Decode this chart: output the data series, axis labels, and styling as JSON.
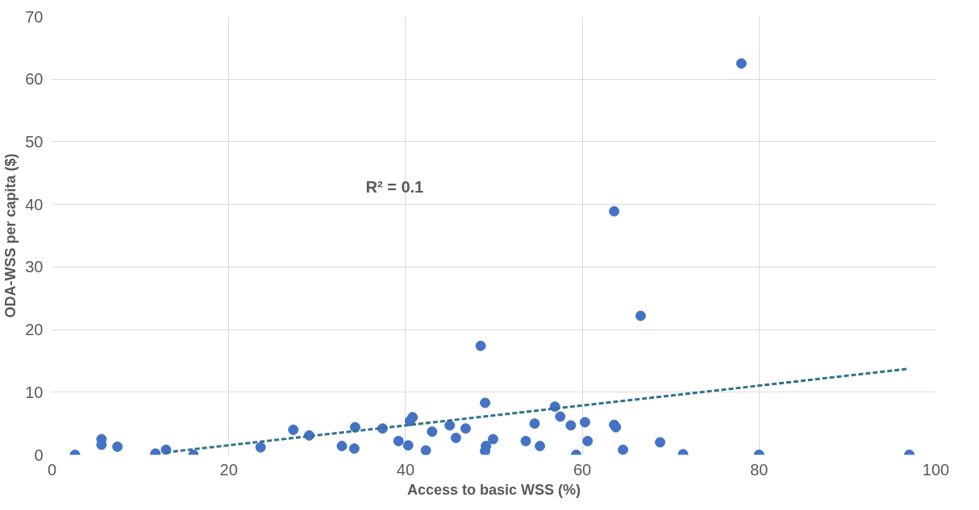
{
  "chart_data": {
    "type": "scatter",
    "xlabel": "Access to basic WSS (%)",
    "ylabel": "ODA-WSS per capita ($)",
    "annotations": [
      "R² = 0.1"
    ],
    "xlim": [
      0,
      100
    ],
    "ylim": [
      0,
      70
    ],
    "xticks": [
      0,
      20,
      40,
      60,
      80,
      100
    ],
    "yticks": [
      0,
      10,
      20,
      30,
      40,
      50,
      60,
      70
    ],
    "grid": true,
    "marker": "circle",
    "series": [
      {
        "color": "#4472c4",
        "x": [
          2.6,
          5.6,
          5.6,
          7.4,
          11.7,
          12.9,
          16.0,
          23.6,
          27.3,
          29.1,
          32.8,
          34.2,
          34.3,
          37.4,
          39.2,
          40.3,
          40.5,
          40.8,
          42.3,
          43.0,
          45.0,
          45.7,
          46.8,
          48.5,
          49.0,
          49.0,
          49.1,
          49.9,
          53.6,
          54.6,
          55.2,
          56.9,
          57.5,
          58.7,
          59.3,
          60.3,
          60.6,
          63.6,
          63.6,
          63.8,
          64.6,
          66.6,
          68.8,
          71.4,
          78.0,
          80.0,
          97.0
        ],
        "values": [
          0.0,
          2.5,
          1.6,
          1.3,
          0.2,
          0.8,
          0.0,
          1.2,
          4.0,
          3.1,
          1.4,
          1.0,
          4.4,
          4.2,
          2.2,
          1.5,
          5.4,
          6.0,
          0.7,
          3.7,
          4.7,
          2.7,
          4.2,
          17.4,
          8.3,
          0.6,
          1.4,
          2.5,
          2.2,
          5.0,
          1.4,
          7.7,
          6.1,
          4.7,
          0.0,
          5.2,
          2.2,
          38.9,
          4.8,
          4.4,
          0.8,
          22.2,
          2.0,
          0.1,
          62.5,
          0.0,
          0.0
        ]
      },
      {
        "type": "line",
        "color": "#31708f",
        "line_style": "dashed",
        "marker": "none",
        "x": [
          12.9,
          96.7
        ],
        "values": [
          0.4,
          13.7
        ]
      }
    ]
  }
}
